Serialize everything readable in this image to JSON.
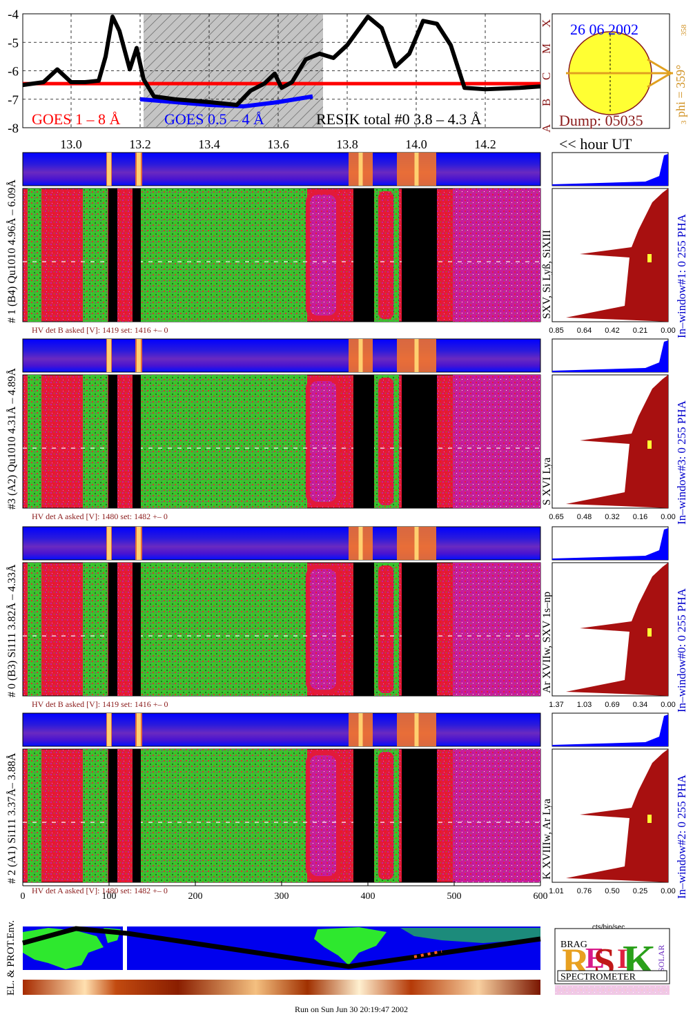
{
  "goes": {
    "y_ticks": [
      "-4",
      "-5",
      "-6",
      "-7",
      "-8"
    ],
    "class_letters": [
      "X",
      "M",
      "C",
      "B",
      "A"
    ],
    "legend_goes_long": "GOES 1 – 8 Å",
    "legend_goes_short": "GOES 0.5 – 4 Å",
    "legend_resik": "RESIK total #0  3.8 – 4.3 Å",
    "time_ticks": [
      "13.0",
      "13.2",
      "13.4",
      "13.6",
      "13.8",
      "14.0",
      "14.2"
    ],
    "time_unit_label": "<< hour UT",
    "colors": {
      "goes_long": "#ff0000",
      "goes_short": "#0000ff",
      "resik": "#000000",
      "shade": "#c8c8c8"
    }
  },
  "sun": {
    "date": "26 06 2002",
    "dump": "Dump: 05035",
    "phi_label": "phi = 359°",
    "phi_sub": "358",
    "phi_pre": "3"
  },
  "chart_data": {
    "type": "line",
    "title": "",
    "xlabel": "<< hour UT",
    "ylabel": "",
    "xlim": [
      12.86,
      14.36
    ],
    "ylim": [
      -8,
      -4
    ],
    "x_ticks": [
      13.0,
      13.2,
      13.4,
      13.6,
      13.8,
      14.0,
      14.2
    ],
    "series": [
      {
        "name": "GOES 1 – 8 Å",
        "color": "#ff0000",
        "x": [
          12.86,
          13.0,
          13.2,
          13.4,
          13.6,
          13.8,
          14.0,
          14.2,
          14.36
        ],
        "values": [
          -6.45,
          -6.45,
          -6.45,
          -6.45,
          -6.45,
          -6.45,
          -6.45,
          -6.45,
          -6.45
        ]
      },
      {
        "name": "GOES 0.5 – 4 Å",
        "color": "#0000ff",
        "x": [
          13.2,
          13.3,
          13.4,
          13.5,
          13.6,
          13.7
        ],
        "values": [
          -7.0,
          -7.1,
          -7.2,
          -7.25,
          -7.1,
          -6.9
        ]
      },
      {
        "name": "RESIK total #0  3.8 – 4.3 Å",
        "color": "#000000",
        "x": [
          12.86,
          12.92,
          12.96,
          13.0,
          13.04,
          13.08,
          13.1,
          13.12,
          13.14,
          13.17,
          13.19,
          13.21,
          13.24,
          13.3,
          13.4,
          13.48,
          13.52,
          13.56,
          13.59,
          13.61,
          13.64,
          13.68,
          13.72,
          13.76,
          13.8,
          13.86,
          13.9,
          13.94,
          13.98,
          14.02,
          14.06,
          14.1,
          14.14,
          14.2,
          14.3,
          14.36
        ],
        "values": [
          -6.5,
          -6.4,
          -5.95,
          -6.4,
          -6.4,
          -6.35,
          -5.5,
          -4.1,
          -4.6,
          -5.95,
          -5.2,
          -6.3,
          -6.9,
          -7.0,
          -7.1,
          -7.2,
          -6.7,
          -6.45,
          -6.1,
          -6.6,
          -6.4,
          -5.6,
          -5.4,
          -5.55,
          -5.1,
          -4.1,
          -4.5,
          -5.85,
          -5.4,
          -4.25,
          -4.35,
          -5.1,
          -6.6,
          -6.65,
          -6.6,
          -6.55
        ]
      }
    ],
    "shaded_interval": [
      13.21,
      13.73
    ]
  },
  "panels": [
    {
      "name": "# 1 (B4) Qu1010 4.96Å – 6.09Å",
      "line_ids": "SXV, Si Lyß, SiXIII",
      "window": "In–window#1:   0 255  PHA",
      "hv": {
        "label": "HV det B asked [V]:",
        "asked": "1419",
        "set_label": "set:",
        "set": "1416",
        "pm": "+–",
        "dev": "0"
      },
      "xticks": [
        "0.85",
        "0.64",
        "0.42",
        "0.21",
        "0.00"
      ]
    },
    {
      "name": "#3 (A2) Qu1010  4.31Å – 4.89Å",
      "line_ids": "S XVI Lya",
      "window": "In–window#3:    0 255 PHA",
      "hv": {
        "label": "HV det A asked [V]:",
        "asked": "1480",
        "set_label": "set:",
        "set": "1482",
        "pm": "+–",
        "dev": "0"
      },
      "xticks": [
        "0.65",
        "0.48",
        "0.32",
        "0.16",
        "0.00"
      ]
    },
    {
      "name": "# 0 (B3) Si111  3.82Å – 4.33Å",
      "line_ids": "Ar XVIIw, SXV 1s–np",
      "window": "In–window#0:   0 255  PHA",
      "hv": {
        "label": "HV det B asked [V]:",
        "asked": "1419",
        "set_label": "set:",
        "set": "1416",
        "pm": "+–",
        "dev": "0"
      },
      "xticks": [
        "1.37",
        "1.03",
        "0.69",
        "0.34",
        "0.00"
      ]
    },
    {
      "name": "# 2 (A1) Si111  3.37Å– 3.88Å",
      "line_ids": "K XVIIIw, Ar Lya",
      "window": "In–window#2:    0 255  PHA",
      "hv": {
        "label": "HV det A asked [V]:",
        "asked": "1480",
        "set_label": "set:",
        "set": "1482",
        "pm": "+–",
        "dev": "0"
      },
      "xticks": [
        "1.01",
        "0.76",
        "0.50",
        "0.25",
        "0.00"
      ]
    }
  ],
  "bottom_axis": {
    "ticks": [
      "0",
      "100",
      "200",
      "300",
      "400",
      "500",
      "600"
    ],
    "units": "cts/bin/sec"
  },
  "env_label": "EL. & PROT.Env.",
  "logo": {
    "title": "SPECTROMETER",
    "letters": [
      "R",
      "E",
      "S",
      "I",
      "K"
    ],
    "small": [
      "BRAG",
      "SOLAR"
    ]
  },
  "footer": "Run on Sun Jun 30 20:19:47 2002"
}
